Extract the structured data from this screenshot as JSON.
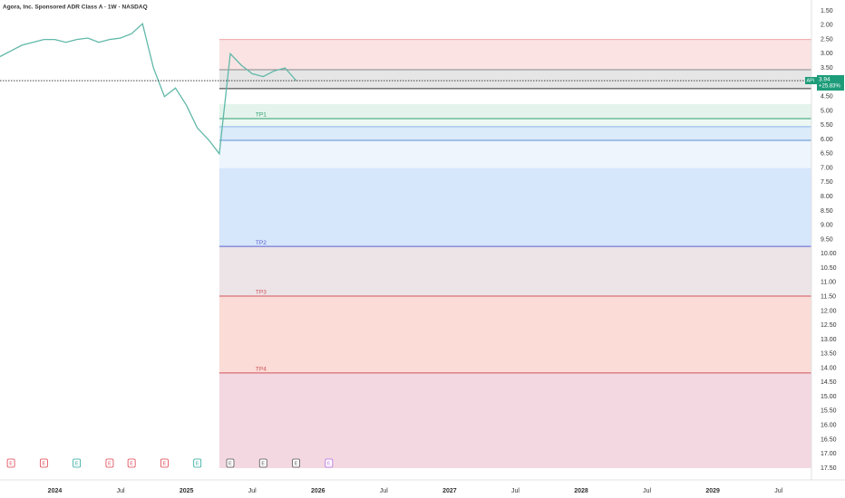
{
  "chart_data": {
    "type": "line",
    "title": "Agora, Inc. Sponsored ADR Class A · 1W · NASDAQ",
    "xlim": [
      "2023-08",
      "2029-10"
    ],
    "xticks": [
      {
        "value": "2024-01",
        "label": "2024"
      },
      {
        "value": "2024-07",
        "label": "Jul"
      },
      {
        "value": "2025-01",
        "label": "2025"
      },
      {
        "value": "2025-07",
        "label": "Jul"
      },
      {
        "value": "2026-01",
        "label": "2026"
      },
      {
        "value": "2026-07",
        "label": "Jul"
      },
      {
        "value": "2027-01",
        "label": "2027"
      },
      {
        "value": "2027-07",
        "label": "Jul"
      },
      {
        "value": "2028-01",
        "label": "2028"
      },
      {
        "value": "2028-07",
        "label": "Jul"
      },
      {
        "value": "2029-01",
        "label": "2029"
      },
      {
        "value": "2029-07",
        "label": "Jul"
      }
    ],
    "ylim": [
      1.5,
      17.5
    ],
    "invert_y": true,
    "yticks": [
      {
        "value": 1.5,
        "label": "1.50"
      },
      {
        "value": 2,
        "label": "2.00"
      },
      {
        "value": 2.5,
        "label": "2.50"
      },
      {
        "value": 3,
        "label": "3.00"
      },
      {
        "value": 3.5,
        "label": "3.50"
      },
      {
        "value": 4,
        "label": "4.00"
      },
      {
        "value": 4.5,
        "label": "4.50"
      },
      {
        "value": 5,
        "label": "5.00"
      },
      {
        "value": 5.5,
        "label": "5.50"
      },
      {
        "value": 6,
        "label": "6.00"
      },
      {
        "value": 6.5,
        "label": "6.50"
      },
      {
        "value": 7,
        "label": "7.00"
      },
      {
        "value": 7.5,
        "label": "7.50"
      },
      {
        "value": 8,
        "label": "8.00"
      },
      {
        "value": 8.5,
        "label": "8.50"
      },
      {
        "value": 9,
        "label": "9.00"
      },
      {
        "value": 9.5,
        "label": "9.50"
      },
      {
        "value": 10,
        "label": "10.00"
      },
      {
        "value": 10.5,
        "label": "10.50"
      },
      {
        "value": 11,
        "label": "11.00"
      },
      {
        "value": 11.5,
        "label": "11.50"
      },
      {
        "value": 12,
        "label": "12.00"
      },
      {
        "value": 12.5,
        "label": "12.50"
      },
      {
        "value": 13,
        "label": "13.00"
      },
      {
        "value": 13.5,
        "label": "13.50"
      },
      {
        "value": 14,
        "label": "14.00"
      },
      {
        "value": 14.5,
        "label": "14.50"
      },
      {
        "value": 15,
        "label": "15.00"
      },
      {
        "value": 15.5,
        "label": "15.50"
      },
      {
        "value": 16,
        "label": "16.00"
      },
      {
        "value": 16.5,
        "label": "16.50"
      },
      {
        "value": 17,
        "label": "17.00"
      },
      {
        "value": 17.5,
        "label": "17.50"
      }
    ],
    "series": [
      {
        "color": "#5fb8a8",
        "x": [
          "2023-08",
          "2023-09",
          "2023-10",
          "2023-11",
          "2023-12",
          "2024-01",
          "2024-02",
          "2024-03",
          "2024-04",
          "2024-05",
          "2024-06",
          "2024-07",
          "2024-08",
          "2024-09",
          "2024-10",
          "2024-11",
          "2024-12",
          "2025-01",
          "2025-02",
          "2025-03",
          "2025-04",
          "2025-05",
          "2025-06",
          "2025-07",
          "2025-08",
          "2025-09",
          "2025-10",
          "2025-11"
        ],
        "values": [
          3.1,
          2.9,
          2.7,
          2.6,
          2.5,
          2.5,
          2.6,
          2.5,
          2.45,
          2.6,
          2.5,
          2.45,
          2.3,
          1.95,
          3.5,
          4.5,
          4.2,
          4.8,
          5.6,
          6.0,
          6.5,
          3.0,
          3.4,
          3.7,
          3.8,
          3.6,
          3.5,
          3.94
        ]
      }
    ],
    "zone_start": "2025-04",
    "zones": [
      {
        "from": 2.5,
        "to": 3.56,
        "color": "#fbe3e4"
      },
      {
        "from": 3.56,
        "to": 4.22,
        "color": "#e6e6e6"
      },
      {
        "from": 4.76,
        "to": 5.27,
        "color": "#e4f4ec"
      },
      {
        "from": 5.27,
        "to": 5.55,
        "color": "#eef8f3"
      },
      {
        "from": 5.55,
        "to": 6.03,
        "color": "#dcebf9"
      },
      {
        "from": 6.03,
        "to": 7.0,
        "color": "#eef5fd"
      },
      {
        "from": 7.0,
        "to": 9.74,
        "color": "#d6e6fb"
      },
      {
        "from": 9.74,
        "to": 11.48,
        "color": "#ece4e6"
      },
      {
        "from": 11.48,
        "to": 14.17,
        "color": "#fbdcd6"
      },
      {
        "from": 14.17,
        "to": 17.5,
        "color": "#f3d8e1"
      }
    ],
    "levels": [
      {
        "value": 2.5,
        "color": "#f2a5a8"
      },
      {
        "value": 3.56,
        "color": "#888888"
      },
      {
        "value": 4.22,
        "color": "#333333"
      },
      {
        "value": 5.27,
        "color": "#2e9e6e",
        "label": "TP1"
      },
      {
        "value": 5.55,
        "color": "#8ab4e6"
      },
      {
        "value": 6.03,
        "color": "#5b8fd6"
      },
      {
        "value": 9.74,
        "color": "#5c5fd0",
        "label": "TP2"
      },
      {
        "value": 11.48,
        "color": "#d25560",
        "label": "TP3"
      },
      {
        "value": 14.17,
        "color": "#d25560",
        "label": "TP4"
      }
    ],
    "ticker_label": "APi",
    "last_price": 3.94,
    "last_change": "+25.83%",
    "events": [
      {
        "x": "2023-09",
        "label": "E",
        "color": "#e04050"
      },
      {
        "x": "2023-12",
        "label": "E",
        "color": "#e04050"
      },
      {
        "x": "2024-03",
        "label": "E",
        "color": "#26a69a"
      },
      {
        "x": "2024-06",
        "label": "E",
        "color": "#e04050"
      },
      {
        "x": "2024-08",
        "label": "E",
        "color": "#e04050"
      },
      {
        "x": "2024-11",
        "label": "E",
        "color": "#e04050"
      },
      {
        "x": "2025-02",
        "label": "E",
        "color": "#26a69a"
      },
      {
        "x": "2025-05",
        "label": "E",
        "color": "#555555"
      },
      {
        "x": "2025-08",
        "label": "E",
        "color": "#555555"
      },
      {
        "x": "2025-11",
        "label": "E",
        "color": "#555555"
      },
      {
        "x": "2026-02",
        "label": "E",
        "color": "#b36ae2"
      }
    ]
  }
}
